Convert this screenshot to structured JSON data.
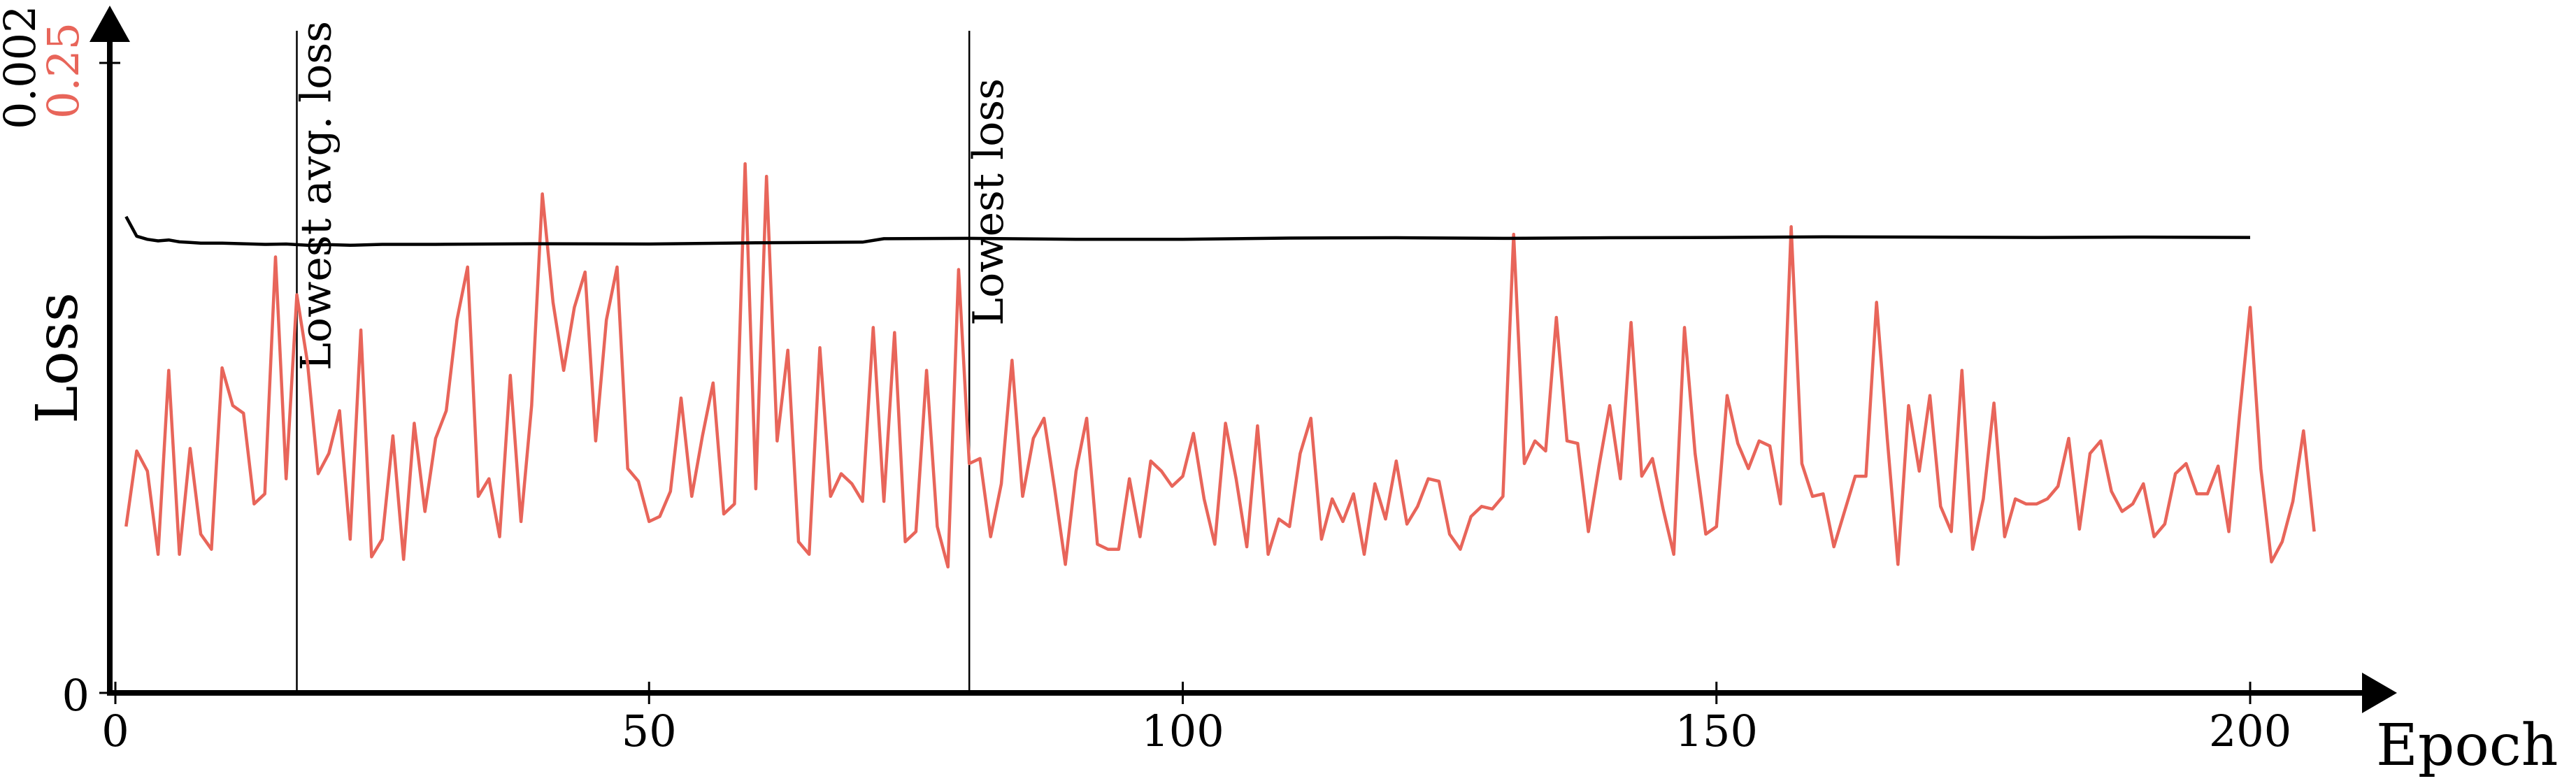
{
  "chart_data": {
    "type": "line",
    "xlabel": "Epoch",
    "ylabel": "Loss",
    "xlim": [
      0,
      200
    ],
    "x_ticks": [
      "0",
      "50",
      "100",
      "150",
      "200"
    ],
    "y_axes": {
      "left_black": {
        "min_label": "0",
        "max_label": "0.002",
        "range": [
          0,
          0.002
        ],
        "color": "#000000"
      },
      "left_red": {
        "max_label": "0.25",
        "range": [
          0,
          0.25
        ],
        "color": "#e8655a"
      }
    },
    "annotations": [
      {
        "label": "Lowest avg. loss",
        "x": 17
      },
      {
        "label": "Lowest loss",
        "x": 80
      }
    ],
    "grid": false,
    "series": [
      {
        "color": "#e8655a",
        "axis": "left_red",
        "x_start": 1,
        "x_step": 1,
        "values": [
          0.066,
          0.096,
          0.088,
          0.055,
          0.128,
          0.055,
          0.097,
          0.063,
          0.057,
          0.129,
          0.114,
          0.111,
          0.075,
          0.079,
          0.173,
          0.085,
          0.158,
          0.131,
          0.087,
          0.095,
          0.112,
          0.061,
          0.144,
          0.054,
          0.061,
          0.102,
          0.053,
          0.107,
          0.072,
          0.101,
          0.112,
          0.148,
          0.169,
          0.078,
          0.085,
          0.062,
          0.126,
          0.068,
          0.114,
          0.198,
          0.155,
          0.128,
          0.153,
          0.167,
          0.1,
          0.148,
          0.169,
          0.089,
          0.084,
          0.068,
          0.07,
          0.08,
          0.117,
          0.078,
          0.102,
          0.123,
          0.071,
          0.075,
          0.21,
          0.081,
          0.205,
          0.1,
          0.136,
          0.06,
          0.055,
          0.137,
          0.078,
          0.087,
          0.083,
          0.076,
          0.145,
          0.076,
          0.143,
          0.06,
          0.064,
          0.128,
          0.066,
          0.05,
          0.168,
          0.091,
          0.093,
          0.062,
          0.083,
          0.132,
          0.078,
          0.101,
          0.109,
          0.081,
          0.051,
          0.088,
          0.109,
          0.059,
          0.057,
          0.057,
          0.085,
          0.062,
          0.092,
          0.088,
          0.082,
          0.086,
          0.103,
          0.077,
          0.059,
          0.107,
          0.085,
          0.058,
          0.106,
          0.055,
          0.069,
          0.066,
          0.095,
          0.109,
          0.061,
          0.077,
          0.068,
          0.079,
          0.055,
          0.083,
          0.069,
          0.092,
          0.067,
          0.074,
          0.085,
          0.084,
          0.063,
          0.057,
          0.07,
          0.074,
          0.073,
          0.078,
          0.182,
          0.091,
          0.1,
          0.096,
          0.149,
          0.1,
          0.099,
          0.064,
          0.09,
          0.114,
          0.085,
          0.147,
          0.086,
          0.093,
          0.073,
          0.055,
          0.145,
          0.095,
          0.063,
          0.066,
          0.118,
          0.099,
          0.089,
          0.1,
          0.098,
          0.075,
          0.185,
          0.091,
          0.078,
          0.079,
          0.058,
          0.072,
          0.086,
          0.086,
          0.155,
          0.101,
          0.051,
          0.114,
          0.088,
          0.118,
          0.074,
          0.064,
          0.128,
          0.057,
          0.077,
          0.115,
          0.062,
          0.077,
          0.075,
          0.075,
          0.077,
          0.082,
          0.101,
          0.065,
          0.095,
          0.1,
          0.08,
          0.072,
          0.075,
          0.083,
          0.062,
          0.067,
          0.087,
          0.091,
          0.079,
          0.079,
          0.09,
          0.064,
          0.11,
          0.153,
          0.089,
          0.052,
          0.06,
          0.076,
          0.104,
          0.064
        ]
      },
      {
        "color": "#000000",
        "axis": "left_black",
        "x": [
          1,
          2,
          3,
          4,
          5,
          6,
          7,
          8,
          10,
          12,
          14,
          16,
          18,
          20,
          22,
          25,
          30,
          40,
          50,
          60,
          70,
          72,
          80,
          90,
          100,
          110,
          120,
          130,
          140,
          150,
          160,
          170,
          180,
          190,
          200
        ],
        "values": [
          0.001512,
          0.00145,
          0.00144,
          0.001435,
          0.001438,
          0.001432,
          0.00143,
          0.001428,
          0.001428,
          0.001426,
          0.001424,
          0.001425,
          0.001421,
          0.001423,
          0.001421,
          0.001424,
          0.001424,
          0.001426,
          0.001425,
          0.001429,
          0.001431,
          0.001442,
          0.001443,
          0.00144,
          0.00144,
          0.001444,
          0.001445,
          0.001443,
          0.001445,
          0.001446,
          0.001448,
          0.001447,
          0.001446,
          0.001447,
          0.001446
        ]
      }
    ]
  }
}
